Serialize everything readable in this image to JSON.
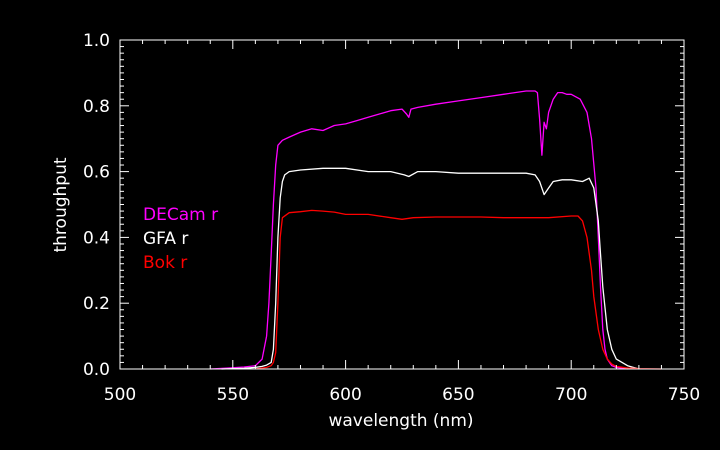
{
  "colors": {
    "background": "#000000",
    "axes": "#ffffff",
    "decam": "#ff00ff",
    "gfa": "#ffffff",
    "bok": "#ff0000"
  },
  "chart_data": {
    "type": "line",
    "xlabel": "wavelength (nm)",
    "ylabel": "throughput",
    "xlim": [
      500,
      750
    ],
    "ylim": [
      0.0,
      1.0
    ],
    "xticks": [
      "500",
      "550",
      "600",
      "650",
      "700",
      "750"
    ],
    "yticks": [
      "0.0",
      "0.2",
      "0.4",
      "0.6",
      "0.8",
      "1.0"
    ],
    "grid": false,
    "legend_position": "left-middle",
    "series": [
      {
        "name": "DECam r",
        "color": "#ff00ff",
        "x": [
          540,
          548,
          555,
          560,
          563,
          565,
          566,
          567,
          568,
          569,
          570,
          572,
          575,
          580,
          585,
          590,
          595,
          600,
          605,
          610,
          615,
          620,
          625,
          627,
          628,
          629,
          632,
          640,
          650,
          660,
          670,
          680,
          684,
          685,
          686,
          687,
          688,
          689,
          690,
          692,
          694,
          696,
          698,
          700,
          704,
          707,
          709,
          711,
          712,
          713,
          714,
          715,
          716,
          718,
          720,
          725
        ],
        "y": [
          0.0,
          0.003,
          0.006,
          0.01,
          0.03,
          0.1,
          0.2,
          0.35,
          0.5,
          0.62,
          0.68,
          0.695,
          0.705,
          0.72,
          0.73,
          0.725,
          0.74,
          0.745,
          0.755,
          0.765,
          0.775,
          0.785,
          0.79,
          0.775,
          0.765,
          0.79,
          0.795,
          0.805,
          0.815,
          0.825,
          0.835,
          0.845,
          0.845,
          0.84,
          0.76,
          0.65,
          0.75,
          0.73,
          0.78,
          0.82,
          0.84,
          0.84,
          0.835,
          0.835,
          0.82,
          0.78,
          0.7,
          0.55,
          0.4,
          0.25,
          0.12,
          0.06,
          0.03,
          0.01,
          0.005,
          0.0
        ]
      },
      {
        "name": "GFA r",
        "color": "#ffffff",
        "x": [
          545,
          555,
          560,
          563,
          565,
          567,
          568,
          569,
          570,
          571,
          572,
          573,
          575,
          580,
          590,
          600,
          610,
          620,
          626,
          628,
          632,
          640,
          650,
          660,
          670,
          680,
          684,
          686,
          688,
          690,
          692,
          696,
          700,
          705,
          708,
          710,
          712,
          713,
          714,
          716,
          718,
          720,
          725,
          730
        ],
        "y": [
          0.0,
          0.002,
          0.005,
          0.008,
          0.012,
          0.02,
          0.06,
          0.2,
          0.4,
          0.52,
          0.57,
          0.59,
          0.6,
          0.605,
          0.61,
          0.61,
          0.6,
          0.6,
          0.59,
          0.585,
          0.6,
          0.6,
          0.595,
          0.595,
          0.595,
          0.595,
          0.59,
          0.57,
          0.53,
          0.55,
          0.57,
          0.575,
          0.575,
          0.57,
          0.58,
          0.55,
          0.45,
          0.35,
          0.25,
          0.12,
          0.06,
          0.03,
          0.01,
          0.0
        ]
      },
      {
        "name": "Bok r",
        "color": "#ff0000",
        "x": [
          560,
          565,
          567,
          568,
          569,
          570,
          571,
          572,
          575,
          580,
          585,
          590,
          595,
          600,
          610,
          620,
          625,
          630,
          640,
          650,
          660,
          670,
          680,
          690,
          700,
          703,
          705,
          707,
          709,
          710,
          712,
          714,
          716,
          718,
          720,
          725,
          730,
          740
        ],
        "y": [
          0.0,
          0.005,
          0.01,
          0.02,
          0.05,
          0.2,
          0.4,
          0.46,
          0.475,
          0.478,
          0.482,
          0.48,
          0.477,
          0.47,
          0.47,
          0.46,
          0.455,
          0.46,
          0.462,
          0.462,
          0.462,
          0.46,
          0.46,
          0.46,
          0.465,
          0.465,
          0.45,
          0.4,
          0.3,
          0.22,
          0.12,
          0.06,
          0.03,
          0.015,
          0.008,
          0.003,
          0.001,
          0.0
        ]
      }
    ]
  }
}
